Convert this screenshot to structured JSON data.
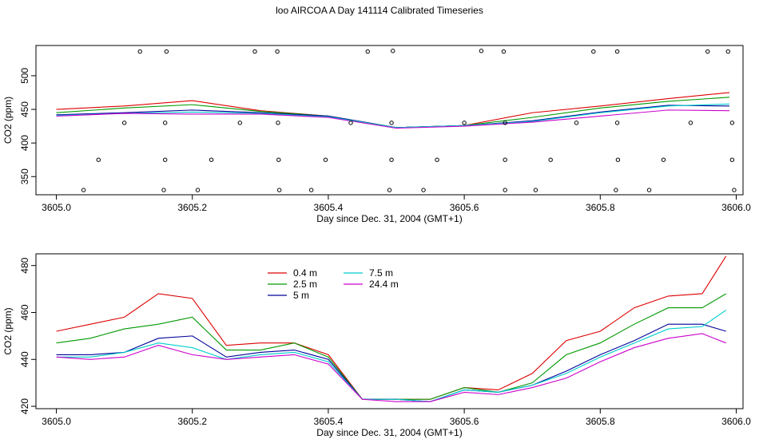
{
  "title": "loo AIRCOA A  Day 141114  Calibrated Timeseries",
  "chart_data": [
    {
      "type": "scatter",
      "xlabel": "Day since Dec. 31, 2004 (GMT+1)",
      "ylabel": "CO2 (ppm)",
      "xlim": [
        3604.97,
        3606.01
      ],
      "ylim": [
        323,
        545
      ],
      "xticks": [
        "3605.0",
        "3605.2",
        "3605.4",
        "3605.6",
        "3605.8",
        "3606.0"
      ],
      "yticks": [
        "350",
        "400",
        "450",
        "500"
      ],
      "x": [
        3605.0,
        3605.1,
        3605.2,
        3605.3,
        3605.4,
        3605.5,
        3605.6,
        3605.7,
        3605.8,
        3605.9,
        3605.99
      ],
      "series": [
        {
          "values": [
            450,
            455,
            463,
            448,
            440,
            423,
            426,
            445,
            455,
            466,
            475
          ],
          "color": "#dd0000"
        },
        {
          "values": [
            445,
            452,
            457,
            447,
            440,
            423,
            426,
            438,
            452,
            462,
            468
          ],
          "color": "#009900"
        },
        {
          "values": [
            442,
            445,
            449,
            445,
            440,
            423,
            426,
            433,
            446,
            456,
            455
          ],
          "color": "#000099"
        },
        {
          "values": [
            441,
            444,
            446,
            444,
            439,
            423,
            426,
            432,
            445,
            455,
            458
          ],
          "color": "#00cccc"
        },
        {
          "values": [
            440,
            444,
            443,
            443,
            438,
            422,
            425,
            431,
            440,
            449,
            448
          ],
          "color": "#cc00cc"
        }
      ],
      "points": [
        [
          3605.123,
          536
        ],
        [
          3605.162,
          536
        ],
        [
          3605.292,
          536
        ],
        [
          3605.325,
          536
        ],
        [
          3605.458,
          536
        ],
        [
          3605.495,
          537
        ],
        [
          3605.625,
          537
        ],
        [
          3605.658,
          536
        ],
        [
          3605.79,
          536
        ],
        [
          3605.825,
          536
        ],
        [
          3605.958,
          536
        ],
        [
          3605.988,
          536
        ],
        [
          3605.1,
          430
        ],
        [
          3605.16,
          430
        ],
        [
          3605.27,
          430
        ],
        [
          3605.326,
          430
        ],
        [
          3605.433,
          430
        ],
        [
          3605.493,
          430
        ],
        [
          3605.6,
          430
        ],
        [
          3605.66,
          430
        ],
        [
          3605.765,
          430
        ],
        [
          3605.825,
          430
        ],
        [
          3605.933,
          430
        ],
        [
          3605.994,
          430
        ],
        [
          3605.062,
          375
        ],
        [
          3605.16,
          375
        ],
        [
          3605.228,
          375
        ],
        [
          3605.327,
          375
        ],
        [
          3605.396,
          375
        ],
        [
          3605.493,
          375
        ],
        [
          3605.56,
          375
        ],
        [
          3605.66,
          375
        ],
        [
          3605.727,
          375
        ],
        [
          3605.826,
          375
        ],
        [
          3605.893,
          375
        ],
        [
          3605.994,
          375
        ],
        [
          3605.04,
          330
        ],
        [
          3605.158,
          330
        ],
        [
          3605.208,
          330
        ],
        [
          3605.328,
          330
        ],
        [
          3605.375,
          330
        ],
        [
          3605.49,
          330
        ],
        [
          3605.54,
          330
        ],
        [
          3605.66,
          330
        ],
        [
          3605.705,
          330
        ],
        [
          3605.823,
          330
        ],
        [
          3605.872,
          330
        ],
        [
          3605.997,
          330
        ]
      ]
    },
    {
      "type": "line",
      "xlabel": "Day since Dec. 31, 2004 (GMT+1)",
      "ylabel": "CO2 (ppm)",
      "xlim": [
        3604.97,
        3606.01
      ],
      "ylim": [
        419,
        485
      ],
      "xticks": [
        "3605.0",
        "3605.2",
        "3605.4",
        "3605.6",
        "3605.8",
        "3606.0"
      ],
      "yticks": [
        "420",
        "440",
        "460",
        "480"
      ],
      "legend_position": "top-left",
      "x": [
        3605.0,
        3605.05,
        3605.1,
        3605.15,
        3605.2,
        3605.25,
        3605.3,
        3605.35,
        3605.4,
        3605.45,
        3605.5,
        3605.55,
        3605.6,
        3605.65,
        3605.7,
        3605.75,
        3605.8,
        3605.85,
        3605.9,
        3605.95,
        3605.985
      ],
      "series": [
        {
          "name": "0.4 m",
          "color": "#dd0000",
          "values": [
            452,
            455,
            458,
            468,
            466,
            446,
            447,
            447,
            442,
            423,
            423,
            423,
            428,
            427,
            434,
            448,
            452,
            462,
            467,
            468,
            484
          ]
        },
        {
          "name": "2.5 m",
          "color": "#009900",
          "values": [
            447,
            449,
            453,
            455,
            458,
            444,
            444,
            447,
            441,
            423,
            423,
            423,
            428,
            426,
            430,
            442,
            447,
            455,
            462,
            462,
            468
          ]
        },
        {
          "name": "5 m",
          "color": "#000099",
          "values": [
            442,
            442,
            443,
            449,
            450,
            441,
            443,
            444,
            440,
            423,
            423,
            422,
            427,
            426,
            429,
            435,
            442,
            448,
            455,
            455,
            452
          ]
        },
        {
          "name": "7.5 m",
          "color": "#00cccc",
          "values": [
            441,
            441,
            443,
            447,
            445,
            440,
            442,
            443,
            439,
            423,
            423,
            422,
            427,
            426,
            429,
            434,
            441,
            447,
            453,
            454,
            461
          ]
        },
        {
          "name": "24.4 m",
          "color": "#cc00cc",
          "values": [
            441,
            440,
            441,
            446,
            442,
            440,
            441,
            442,
            438,
            423,
            422,
            422,
            426,
            425,
            428,
            432,
            439,
            445,
            449,
            451,
            447
          ]
        }
      ]
    }
  ]
}
